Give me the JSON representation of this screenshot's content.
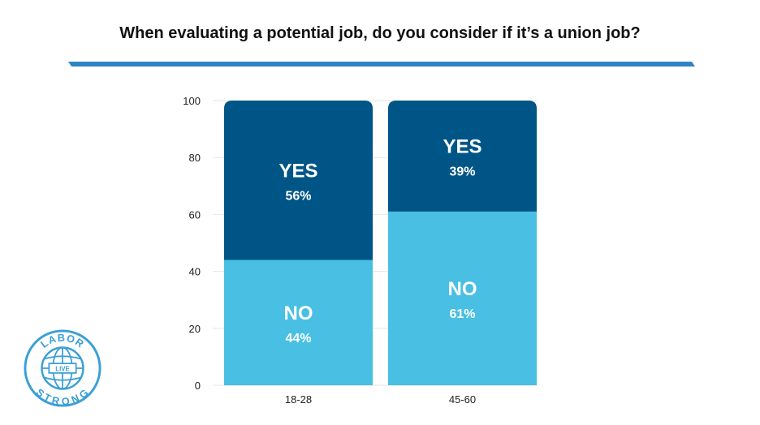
{
  "title": "When evaluating a potential job, do you consider if it’s a union job?",
  "colors": {
    "accent": "#2f84c3",
    "yes": "#005587",
    "no": "#48bfe3",
    "logo": "#3a9fd6"
  },
  "logo": {
    "text_top": "LABOR",
    "text_mid": "LIVE",
    "text_bottom": "STRONG"
  },
  "chart_data": {
    "type": "bar",
    "stacked": true,
    "categories": [
      "18-28",
      "45-60"
    ],
    "series": [
      {
        "name": "NO",
        "values": [
          44,
          61
        ],
        "color": "#48bfe3"
      },
      {
        "name": "YES",
        "values": [
          56,
          39
        ],
        "color": "#005587"
      }
    ],
    "value_labels": [
      [
        "44%",
        "61%"
      ],
      [
        "56%",
        "39%"
      ]
    ],
    "ylim": [
      0,
      100
    ],
    "yticks": [
      0,
      20,
      40,
      60,
      80,
      100
    ],
    "grid": true,
    "legend": "none"
  }
}
